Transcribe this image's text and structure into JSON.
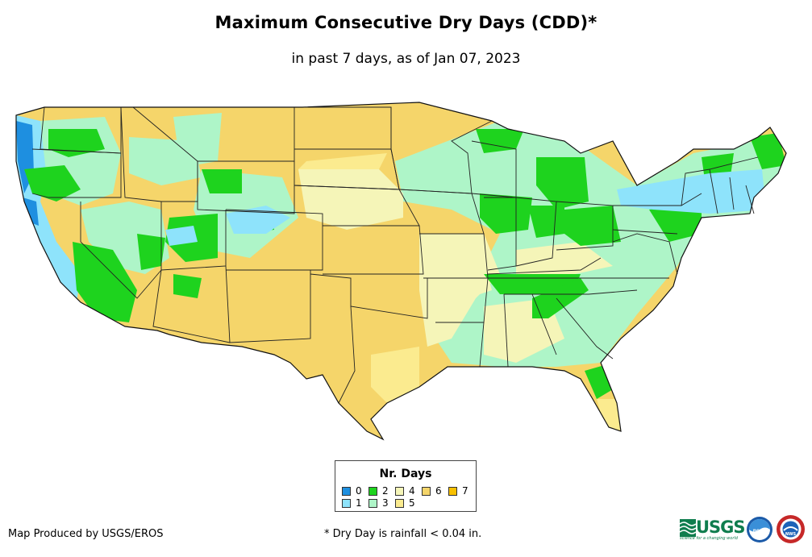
{
  "title": "Maximum Consecutive Dry Days (CDD)*",
  "subtitle": "in past 7 days, as of Jan 07, 2023",
  "legend": {
    "title": "Nr. Days",
    "items": [
      {
        "label": "0",
        "color": "#1e8fe0"
      },
      {
        "label": "1",
        "color": "#8ee3fb"
      },
      {
        "label": "2",
        "color": "#1ed31e"
      },
      {
        "label": "3",
        "color": "#aef5c8"
      },
      {
        "label": "4",
        "color": "#f5f5b8"
      },
      {
        "label": "5",
        "color": "#fbeb8f"
      },
      {
        "label": "6",
        "color": "#f5d56a"
      },
      {
        "label": "7",
        "color": "#f8c000"
      }
    ]
  },
  "credit": "Map Produced by USGS/EROS",
  "footnote": "* Dry Day is rainfall < 0.04 in.",
  "logos": {
    "usgs": "USGS",
    "usgs_tagline": "science for a changing world",
    "noaa": "noaa",
    "nws": "NWS"
  },
  "colors": {
    "state_border": "#222222",
    "outline": "#111111"
  }
}
